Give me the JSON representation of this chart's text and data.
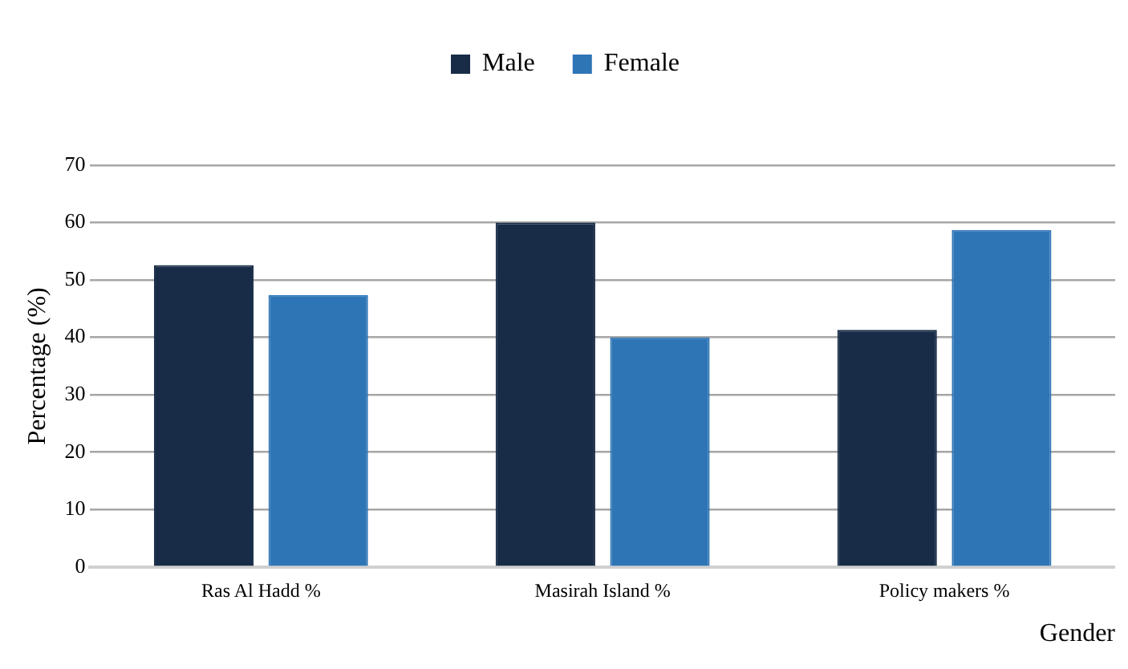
{
  "chart_data": {
    "type": "bar",
    "xlabel": "Gender",
    "ylabel": "Percentage (%)",
    "categories": [
      "Ras Al Hadd %",
      "Masirah Island %",
      "Policy makers %"
    ],
    "series": [
      {
        "name": "Male",
        "color": "#182c47",
        "values": [
          52.6,
          60,
          41.3
        ]
      },
      {
        "name": "Female",
        "color": "#2e75b6",
        "values": [
          47.4,
          40,
          58.7
        ]
      }
    ],
    "ylim": [
      0,
      70
    ],
    "yticks": [
      0,
      10,
      20,
      30,
      40,
      50,
      60,
      70
    ],
    "grid": "y",
    "legend": "top"
  }
}
